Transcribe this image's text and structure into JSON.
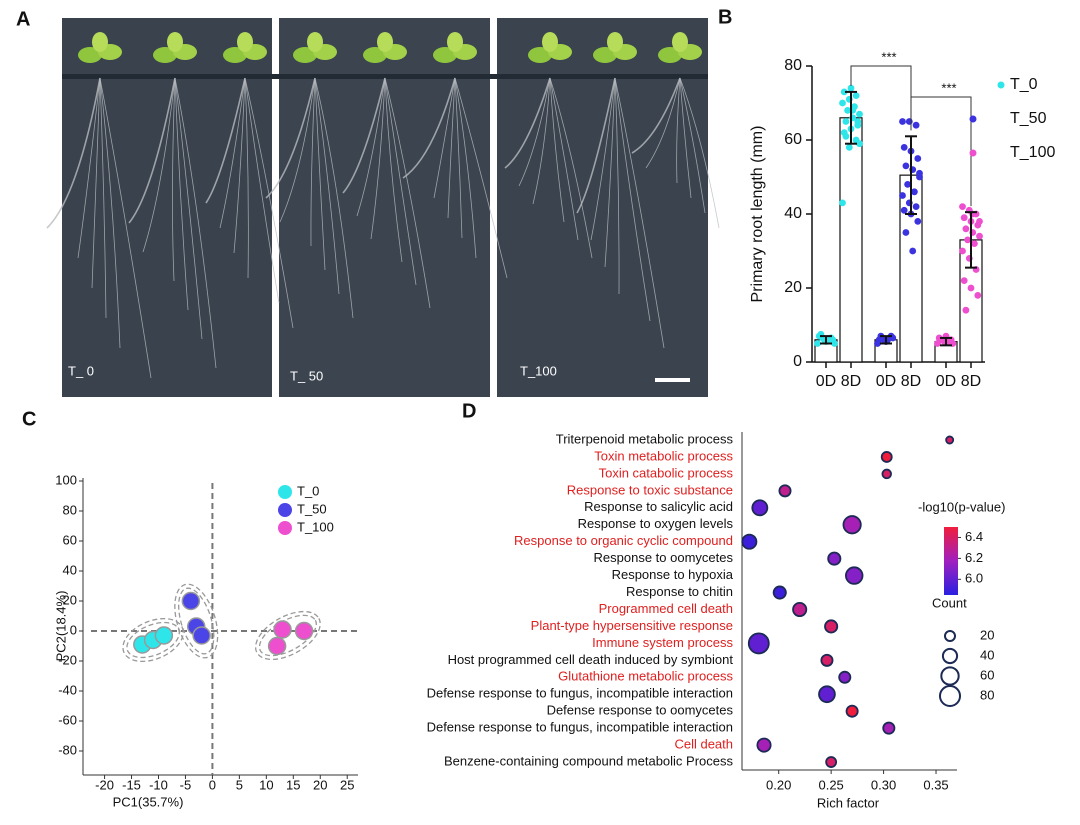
{
  "panel_labels": [
    "A",
    "B",
    "C",
    "D"
  ],
  "photo_labels": [
    "T_ 0",
    "T_ 50",
    "T_100"
  ],
  "chart_data": [
    {
      "type": "bar",
      "categories": [
        "0D",
        "8D",
        "0D",
        "8D",
        "0D",
        "8D"
      ],
      "y_label": "Primary root length (mm)",
      "ylim": [
        0,
        80
      ],
      "yticks": [
        0,
        20,
        40,
        60,
        80
      ],
      "annotations": [
        "***",
        "***"
      ],
      "series": [
        {
          "name": "T_0",
          "color": "#2ee6ea",
          "values": [
            6,
            66,
            null,
            null,
            null,
            null
          ],
          "errors": [
            1,
            7,
            null,
            null,
            null,
            null
          ],
          "points": [
            [
              5,
              6,
              6.5,
              7,
              5.5,
              6,
              7.5,
              6,
              5,
              6.5
            ],
            [
              43,
              58,
              60,
              62,
              63,
              64,
              65,
              66,
              67,
              68,
              69,
              70,
              71,
              72,
              73,
              74,
              65,
              61,
              68,
              59
            ],
            [],
            [],
            [],
            []
          ]
        },
        {
          "name": "T_50",
          "color": "#3b32e0",
          "values": [
            null,
            null,
            6,
            50.5,
            null,
            null
          ],
          "errors": [
            null,
            null,
            1,
            10.5,
            null,
            null
          ],
          "points": [
            [],
            [],
            [
              5,
              6,
              7,
              6,
              5.5,
              6.5,
              7,
              6
            ],
            [
              65,
              65,
              64,
              58,
              57,
              55,
              53,
              52,
              50,
              48,
              46,
              45,
              43,
              42,
              41,
              40,
              38,
              35,
              30,
              51
            ],
            [],
            []
          ]
        },
        {
          "name": "T_100",
          "color": "#ee4fcf",
          "values": [
            null,
            null,
            null,
            null,
            5.5,
            33
          ],
          "errors": [
            null,
            null,
            null,
            null,
            1,
            7.5
          ],
          "points": [
            [],
            [],
            [],
            [],
            [
              5,
              5.5,
              6,
              6.5,
              7,
              5,
              6,
              5.5
            ],
            [
              42,
              41,
              40,
              39,
              38,
              37,
              36,
              35,
              34,
              33,
              32,
              30,
              28,
              25,
              22,
              20,
              18,
              14,
              40,
              38
            ]
          ]
        }
      ]
    },
    {
      "type": "scatter",
      "x_label": "PC1(35.7%)",
      "y_label": "PC2(18.4%)",
      "xlim": [
        -24,
        27
      ],
      "xticks": [
        -20,
        -15,
        -10,
        -5,
        0,
        5,
        10,
        15,
        20,
        25
      ],
      "ylim": [
        -96,
        102
      ],
      "yticks": [
        -80,
        -60,
        -40,
        -20,
        0,
        20,
        40,
        60,
        80,
        100
      ],
      "series": [
        {
          "name": "T_0",
          "color": "#2ee6ea",
          "x": [
            -13,
            -11,
            -9
          ],
          "y": [
            -9,
            -6,
            -3
          ]
        },
        {
          "name": "T_50",
          "color": "#4b44e6",
          "x": [
            -4,
            -3,
            -2
          ],
          "y": [
            20,
            3,
            -3
          ]
        },
        {
          "name": "T_100",
          "color": "#ee4fcf",
          "x": [
            12,
            13,
            17
          ],
          "y": [
            -10,
            1,
            0
          ]
        }
      ]
    },
    {
      "type": "bubble",
      "x_label": "Rich factor",
      "color_label": "-log10(p-value)",
      "size_label": "Count",
      "categories": [
        "Triterpenoid metabolic process",
        "Toxin metabolic process",
        "Toxin catabolic process",
        "Response to toxic substance",
        "Response to salicylic acid",
        "Response to oxygen levels",
        "Response to organic cyclic compound",
        "Response to oomycetes",
        "Response to hypoxia",
        "Response to chitin",
        "Programmed cell death",
        "Plant-type hypersensitive response",
        "Immune system process",
        "Host programmed cell death induced by symbiont",
        "Glutathione metabolic process",
        "Defense response to fungus, incompatible interaction",
        "Defense response to oomycetes",
        "Defense response to fungus, incompatible interaction",
        "Cell death",
        "Benzene-containing compound metabolic Process"
      ],
      "label_colors": [
        "#111111",
        "#e02020",
        "#e02020",
        "#e02020",
        "#111111",
        "#111111",
        "#e02020",
        "#111111",
        "#111111",
        "#111111",
        "#e02020",
        "#e02020",
        "#e02020",
        "#111111",
        "#e02020",
        "#111111",
        "#111111",
        "#111111",
        "#e02020",
        "#111111"
      ],
      "x": [
        0.363,
        0.303,
        0.303,
        0.206,
        0.182,
        0.27,
        0.172,
        0.253,
        0.272,
        0.201,
        0.22,
        0.25,
        0.181,
        0.246,
        0.263,
        0.246,
        0.27,
        0.305,
        0.186,
        0.25
      ],
      "sizes": [
        10,
        20,
        15,
        25,
        45,
        60,
        40,
        30,
        55,
        30,
        35,
        30,
        80,
        25,
        25,
        50,
        25,
        25,
        35,
        20
      ],
      "colors": [
        6.4,
        6.5,
        6.4,
        6.3,
        6.0,
        6.2,
        5.9,
        6.1,
        6.1,
        5.9,
        6.3,
        6.4,
        6.0,
        6.4,
        6.1,
        6.0,
        6.5,
        6.2,
        6.2,
        6.4
      ],
      "xlim": [
        0.165,
        0.37
      ],
      "xticks": [
        {
          "value": 0.2,
          "label": "0.20"
        },
        0.25,
        {
          "value": 0.3,
          "label": "0.30"
        },
        0.35
      ],
      "color_range": [
        5.85,
        6.5
      ],
      "color_ticks": [
        {
          "value": 6,
          "label": "6.0"
        },
        6.2,
        6.4
      ],
      "color_scale": [
        "#2a1fe0",
        "#a020c0",
        "#f01e3c"
      ],
      "size_ticks": [
        20,
        40,
        60,
        80
      ]
    }
  ]
}
